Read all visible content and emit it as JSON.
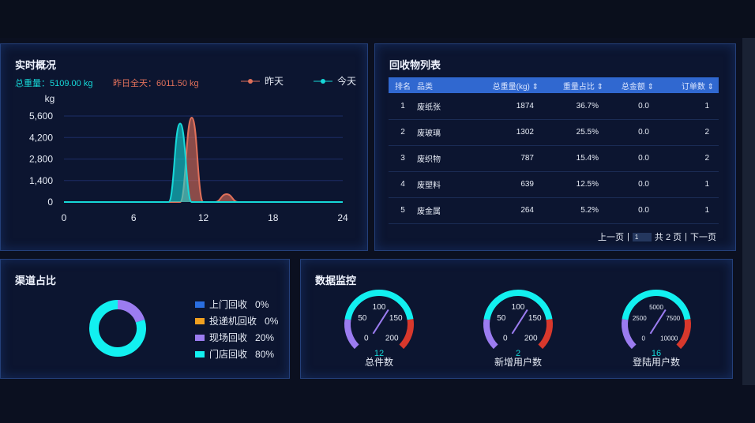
{
  "overview": {
    "title": "实时概况",
    "today_total_label": "总重量：5109.00 kg",
    "yesterday_total_label": "昨日全天：6011.50 kg",
    "colors": {
      "today": "#16d8d8",
      "yesterday": "#e0705a"
    }
  },
  "chart_data": {
    "type": "area",
    "ylabel": "kg",
    "xlim": [
      0,
      24
    ],
    "ylim": [
      0,
      5600
    ],
    "xticks": [
      "0",
      "6",
      "12",
      "18",
      "24"
    ],
    "yticks": [
      "0",
      "1,400",
      "2,800",
      "4,200",
      "5,600"
    ],
    "grid": true,
    "legend_placement": "top-right",
    "x": [
      0,
      1,
      2,
      3,
      4,
      5,
      6,
      7,
      8,
      9,
      10,
      11,
      12,
      13,
      14,
      15,
      16,
      17,
      18,
      19,
      20,
      21,
      22,
      23,
      24
    ],
    "series": [
      {
        "name": "昨天",
        "values": [
          0,
          0,
          0,
          0,
          0,
          0,
          0,
          0,
          0,
          0,
          0,
          5500,
          0,
          0,
          511.5,
          0,
          0,
          0,
          0,
          0,
          0,
          0,
          0,
          0,
          0
        ]
      },
      {
        "name": "今天",
        "values": [
          0,
          0,
          0,
          0,
          0,
          0,
          0,
          0,
          0,
          0,
          5109,
          0,
          0,
          0,
          0,
          0,
          0,
          0,
          0,
          0,
          0,
          0,
          0,
          0,
          0
        ]
      }
    ]
  },
  "table": {
    "title": "回收物列表",
    "headers": [
      "排名",
      "品类",
      "总重量(kg)",
      "重量占比",
      "总金额",
      "订单数"
    ],
    "rows": [
      [
        "1",
        "废纸张",
        "1874",
        "36.7%",
        "0.0",
        "1"
      ],
      [
        "2",
        "废玻璃",
        "1302",
        "25.5%",
        "0.0",
        "2"
      ],
      [
        "3",
        "废织物",
        "787",
        "15.4%",
        "0.0",
        "2"
      ],
      [
        "4",
        "废塑料",
        "639",
        "12.5%",
        "0.0",
        "1"
      ],
      [
        "5",
        "废金属",
        "264",
        "5.2%",
        "0.0",
        "1"
      ]
    ],
    "pager": {
      "prev": "上一页",
      "page": "1",
      "total": "共 2 页",
      "next": "下一页"
    }
  },
  "channel": {
    "title": "渠道占比",
    "items": [
      {
        "label": "上门回收",
        "pct": "0%",
        "value": 0,
        "color": "#2a6ee0"
      },
      {
        "label": "投递机回收",
        "pct": "0%",
        "value": 0,
        "color": "#f0a020"
      },
      {
        "label": "现场回收",
        "pct": "20%",
        "value": 20,
        "color": "#9b7cf0"
      },
      {
        "label": "门店回收",
        "pct": "80%",
        "value": 80,
        "color": "#12f0f0"
      }
    ]
  },
  "monitor": {
    "title": "数据监控",
    "gauges": [
      {
        "label": "总件数",
        "value": "12",
        "max": 200,
        "ticks": [
          "0",
          "50",
          "100",
          "150",
          "200"
        ]
      },
      {
        "label": "新增用户数",
        "value": "2",
        "max": 200,
        "ticks": [
          "0",
          "50",
          "100",
          "150",
          "200"
        ]
      },
      {
        "label": "登陆用户数",
        "value": "16",
        "max": 10000,
        "ticks": [
          "0",
          "2500",
          "5000",
          "7500",
          "10000"
        ]
      }
    ],
    "colors": {
      "low": "#9b7cf0",
      "mid": "#12f0f0",
      "high": "#d8382c"
    }
  }
}
